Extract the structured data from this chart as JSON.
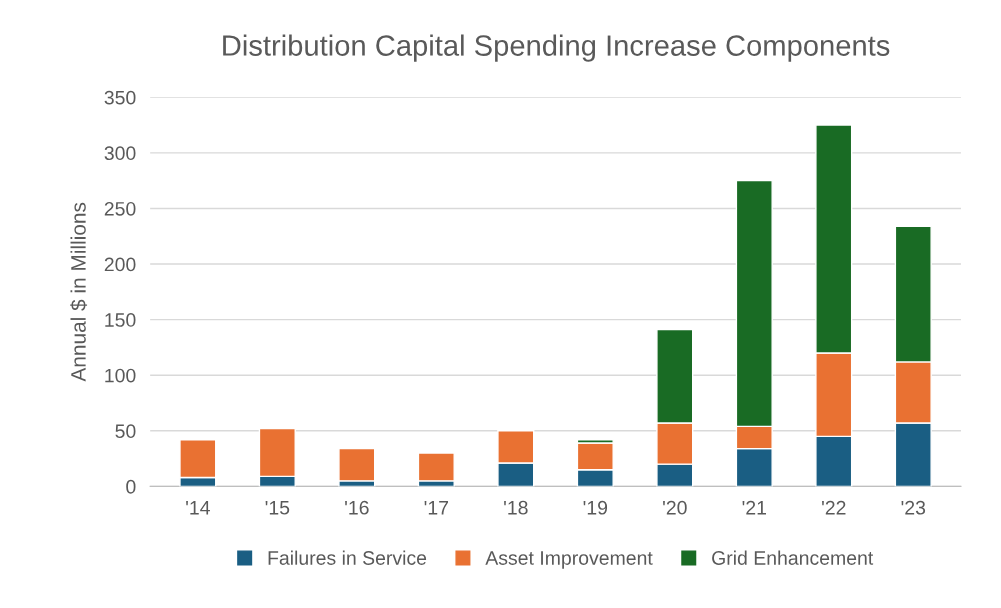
{
  "chart_data": {
    "type": "bar",
    "title": "Distribution Capital Spending Increase Components",
    "ylabel": "Annual $ in Millions",
    "categories": [
      "'14",
      "'15",
      "'16",
      "'17",
      "'18",
      "'19",
      "'20",
      "'21",
      "'22",
      "'23"
    ],
    "stacked": true,
    "series": [
      {
        "name": "Failures in Service",
        "color": "#1a5e83",
        "values": [
          8,
          9,
          5,
          5,
          21,
          15,
          20,
          34,
          45,
          57
        ]
      },
      {
        "name": "Asset Improvement",
        "color": "#e97132",
        "values": [
          34,
          43,
          29,
          25,
          29,
          24,
          37,
          20,
          75,
          55
        ]
      },
      {
        "name": "Grid Enhancement",
        "color": "#196b24",
        "values": [
          null,
          null,
          null,
          null,
          null,
          3,
          84,
          221,
          205,
          122
        ]
      }
    ],
    "ylim": [
      0,
      350
    ],
    "yticks": [
      0,
      50,
      100,
      150,
      200,
      250,
      300,
      350
    ],
    "grid": "y",
    "legend": "bottom"
  }
}
